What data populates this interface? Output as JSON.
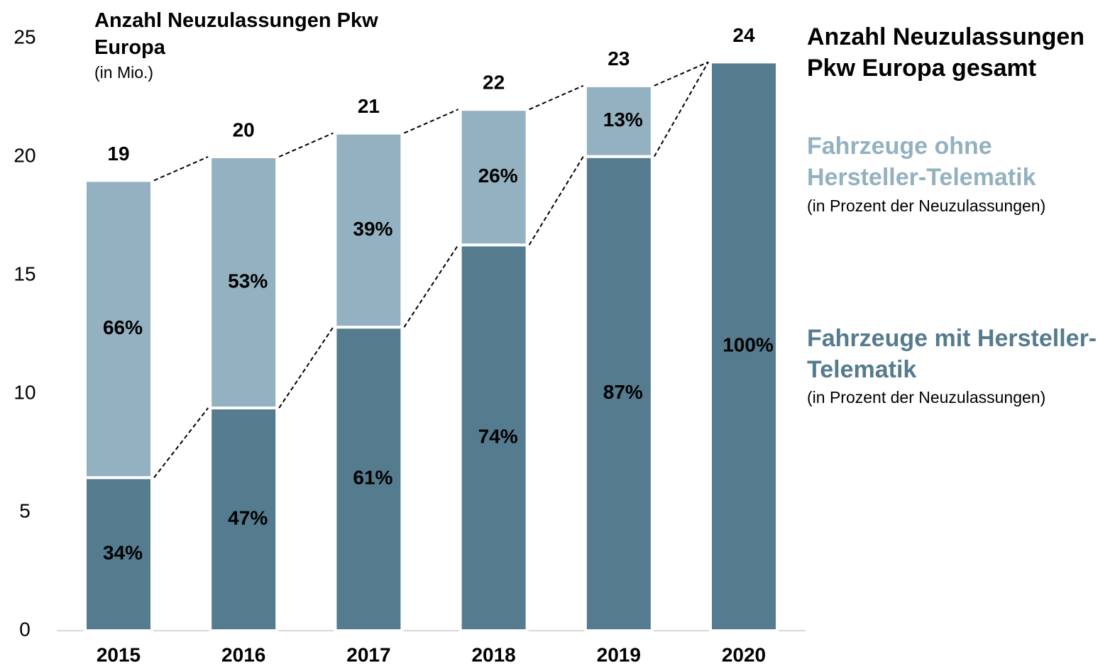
{
  "chart_data": {
    "type": "stacked_bar",
    "title": "Anzahl Neuzulassungen Pkw Europa",
    "subtitle": "(in Mio.)",
    "categories": [
      "2015",
      "2016",
      "2017",
      "2018",
      "2019",
      "2020"
    ],
    "totals": [
      19,
      20,
      21,
      22,
      23,
      24
    ],
    "totals_legend": "Anzahl Neuzulassungen Pkw Europa gesamt",
    "series": [
      {
        "name": "Fahrzeuge mit Hersteller-Telematik",
        "note": "(in Prozent der Neuzulassungen)",
        "color": "#557b8f",
        "values": [
          6.46,
          9.4,
          12.81,
          16.28,
          20.01,
          24
        ],
        "percent_labels": [
          "34%",
          "47%",
          "61%",
          "74%",
          "87%",
          "100%"
        ]
      },
      {
        "name": "Fahrzeuge ohne Hersteller-Telematik",
        "note": "(in Prozent der Neuzulassungen)",
        "color": "#93b1c1",
        "values": [
          12.54,
          10.6,
          8.19,
          5.72,
          2.99,
          0
        ],
        "percent_labels": [
          "66%",
          "53%",
          "39%",
          "26%",
          "13%",
          null
        ]
      }
    ],
    "ylim": [
      0,
      25
    ],
    "yticks": [
      0,
      5,
      10,
      15,
      20,
      25
    ]
  }
}
